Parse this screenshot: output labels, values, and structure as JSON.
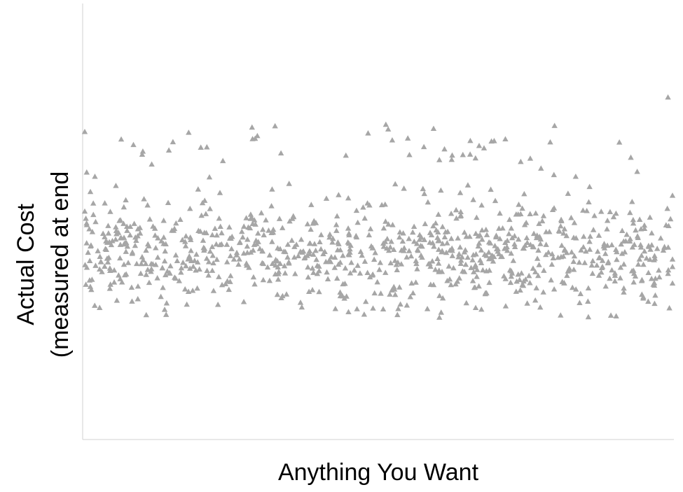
{
  "chart_data": {
    "type": "scatter",
    "xlabel": "Anything You Want",
    "ylabel_lines": [
      "Actual Cost",
      "(measured at end"
    ],
    "grid": false,
    "legend": "none",
    "marker": "triangle",
    "colors": {
      "marker": "#a6a6a6",
      "axis": "#d9d9d9",
      "text": "#000000"
    },
    "xlim": [
      0,
      100
    ],
    "ylim": [
      0,
      100
    ],
    "points_description": "About 1000 unlabeled scattered points; approximate positions",
    "points_seed": 12345,
    "points_count": 980
  }
}
